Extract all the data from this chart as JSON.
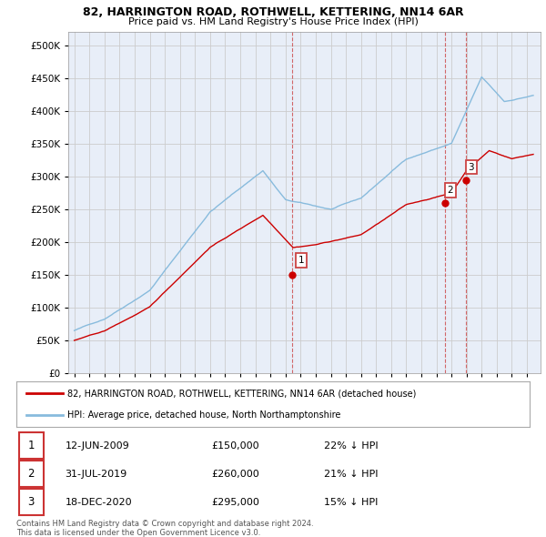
{
  "title": "82, HARRINGTON ROAD, ROTHWELL, KETTERING, NN14 6AR",
  "subtitle": "Price paid vs. HM Land Registry's House Price Index (HPI)",
  "legend_line1": "82, HARRINGTON ROAD, ROTHWELL, KETTERING, NN14 6AR (detached house)",
  "legend_line2": "HPI: Average price, detached house, North Northamptonshire",
  "footer1": "Contains HM Land Registry data © Crown copyright and database right 2024.",
  "footer2": "This data is licensed under the Open Government Licence v3.0.",
  "transactions": [
    {
      "num": 1,
      "date": "12-JUN-2009",
      "price": 150000,
      "pct": "22%",
      "direction": "↓",
      "year": 2009.45
    },
    {
      "num": 2,
      "date": "31-JUL-2019",
      "price": 260000,
      "pct": "21%",
      "direction": "↓",
      "year": 2019.58
    },
    {
      "num": 3,
      "date": "18-DEC-2020",
      "price": 295000,
      "pct": "15%",
      "direction": "↓",
      "year": 2020.96
    }
  ],
  "property_color": "#cc0000",
  "hpi_color": "#88bbdd",
  "vline_color": "#cc4444",
  "ylim_max": 520000,
  "background_color": "#ffffff",
  "grid_color": "#cccccc",
  "plot_bg": "#e8eef8"
}
